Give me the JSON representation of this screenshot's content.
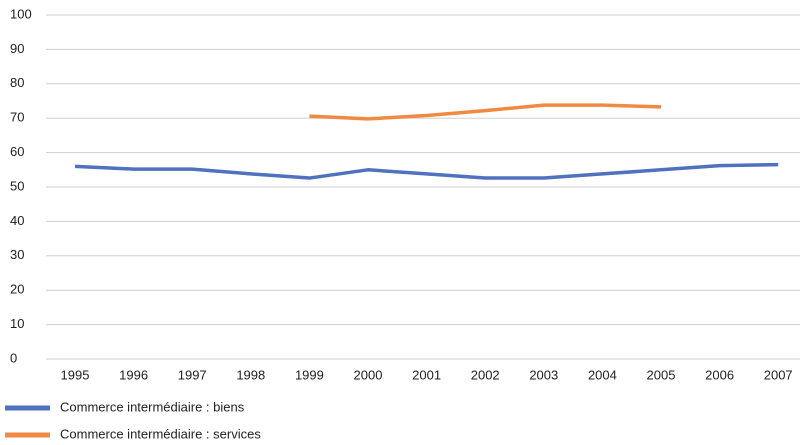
{
  "chart_data": {
    "type": "line",
    "categories": [
      "1995",
      "1996",
      "1997",
      "1998",
      "1999",
      "2000",
      "2001",
      "2002",
      "2003",
      "2004",
      "2005",
      "2006",
      "2007"
    ],
    "series": [
      {
        "name": "Commerce intermédiaire : biens",
        "color": "#4f72be",
        "values": [
          56,
          55.2,
          55.2,
          53.8,
          52.6,
          55,
          53.8,
          52.6,
          52.6,
          53.8,
          55,
          56.2,
          56.5
        ]
      },
      {
        "name": "Commerce intermédiaire : services",
        "color": "#f08a42",
        "values": [
          null,
          null,
          null,
          null,
          70.6,
          69.8,
          70.8,
          72.2,
          73.8,
          73.8,
          73.3,
          null,
          null
        ]
      }
    ],
    "ylim": [
      0,
      100
    ],
    "yticks": [
      0,
      10,
      20,
      30,
      40,
      50,
      60,
      70,
      80,
      90,
      100
    ],
    "grid": true,
    "legend": "bottom"
  }
}
